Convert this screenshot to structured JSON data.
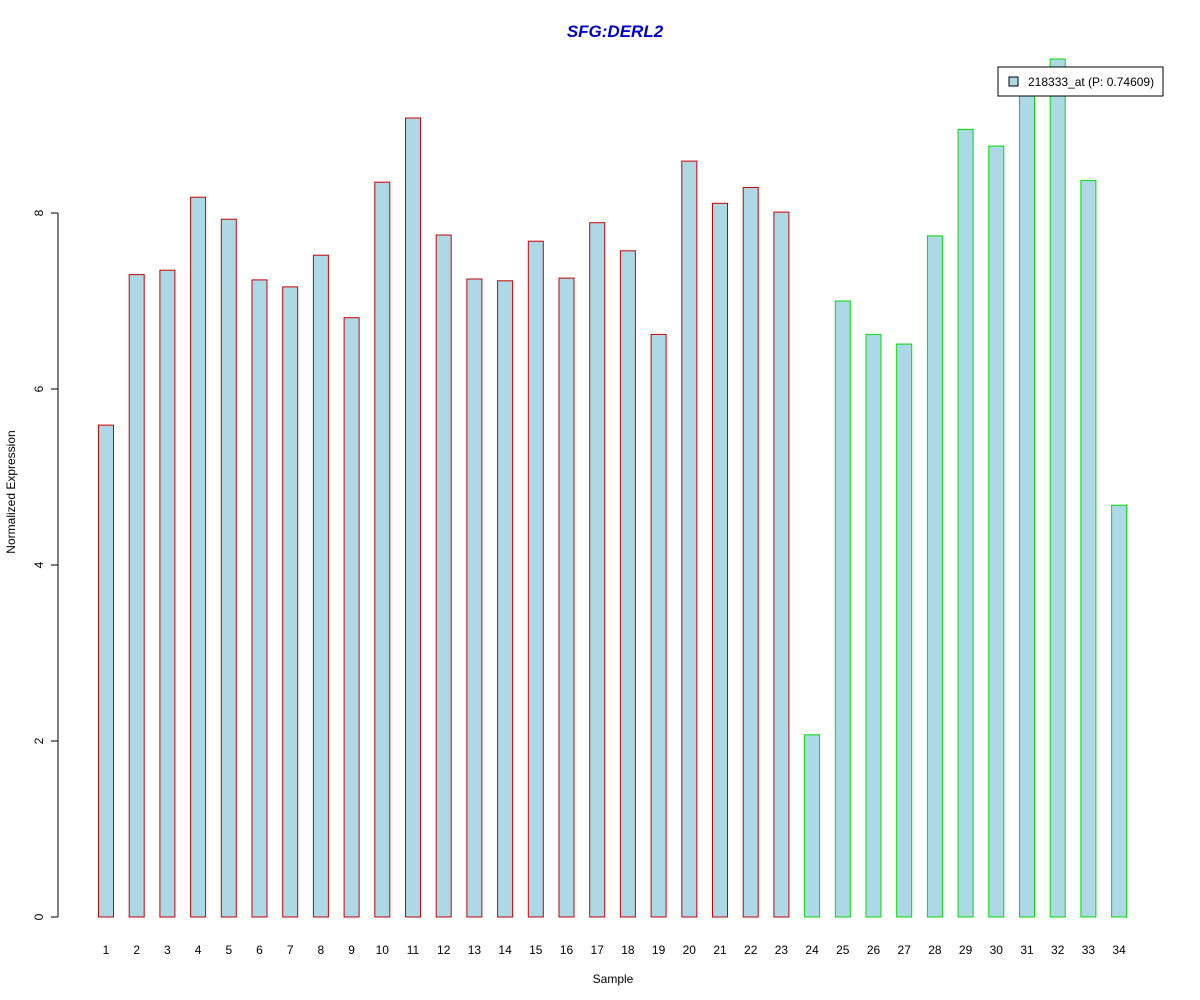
{
  "chart_data": {
    "type": "bar",
    "title": "SFG:DERL2",
    "xlabel": "Sample",
    "ylabel": "Normalized Expression",
    "ylim": [
      0,
      9.8
    ],
    "yticks": [
      0,
      2,
      4,
      6,
      8
    ],
    "grid": false,
    "legend_position": "top-right",
    "categories": [
      "1",
      "2",
      "3",
      "4",
      "5",
      "6",
      "7",
      "8",
      "9",
      "10",
      "11",
      "12",
      "13",
      "14",
      "15",
      "16",
      "17",
      "18",
      "19",
      "20",
      "21",
      "22",
      "23",
      "24",
      "25",
      "26",
      "27",
      "28",
      "29",
      "30",
      "31",
      "32",
      "33",
      "34"
    ],
    "series": [
      {
        "name": "218333_at (P: 0.74609)",
        "values": [
          5.59,
          7.3,
          7.35,
          8.18,
          7.93,
          7.24,
          7.16,
          7.52,
          6.81,
          8.35,
          9.08,
          7.75,
          7.25,
          7.23,
          7.68,
          7.26,
          7.89,
          7.57,
          6.62,
          8.59,
          8.11,
          8.29,
          8.01,
          2.07,
          7.0,
          6.62,
          6.51,
          7.74,
          8.95,
          8.76,
          9.38,
          9.75,
          8.37,
          4.68
        ]
      }
    ],
    "groups": [
      {
        "from": 1,
        "to": 23,
        "border_color": "#cc0000"
      },
      {
        "from": 24,
        "to": 34,
        "border_color": "#00dd00"
      }
    ],
    "fill_color": "#add8e6",
    "title_color": "#0000cc"
  }
}
